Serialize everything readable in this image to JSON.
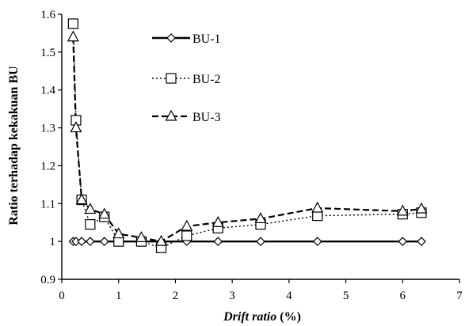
{
  "chart_data": {
    "type": "line",
    "title": "",
    "xlabel_italic": "Drift ratio",
    "xlabel_suffix": " (%)",
    "ylabel": "Ratio terhadap kekakuan BU",
    "xlim": [
      0,
      7
    ],
    "ylim": [
      0.9,
      1.6
    ],
    "x_ticks": [
      0,
      1,
      2,
      3,
      4,
      5,
      6,
      7
    ],
    "y_ticks": [
      0.9,
      1.0,
      1.1,
      1.2,
      1.3,
      1.4,
      1.5,
      1.6
    ],
    "x_tick_labels": [
      "0",
      "1",
      "2",
      "3",
      "4",
      "5",
      "6",
      "7"
    ],
    "y_tick_labels": [
      "0.9",
      "1",
      "1.1",
      "1.2",
      "1.3",
      "1.4",
      "1.5",
      "1.6"
    ],
    "grid": false,
    "legend_position": "top-center",
    "series": [
      {
        "name": "BU-1",
        "marker": "diamond",
        "line_style": "solid",
        "color": "#000000",
        "x": [
          0.2,
          0.25,
          0.35,
          0.5,
          0.75,
          1.0,
          1.4,
          1.75,
          2.2,
          2.75,
          3.5,
          4.5,
          6.0,
          6.33
        ],
        "y": [
          1.0,
          1.0,
          1.0,
          1.0,
          1.0,
          1.0,
          1.0,
          1.0,
          1.0,
          1.0,
          1.0,
          1.0,
          1.0,
          1.0
        ]
      },
      {
        "name": "BU-2",
        "marker": "square",
        "line_style": "dotted",
        "color": "#000000",
        "x": [
          0.2,
          0.25,
          0.35,
          0.5,
          0.75,
          1.0,
          1.4,
          1.75,
          2.2,
          2.75,
          3.5,
          4.5,
          6.0,
          6.33
        ],
        "y": [
          1.575,
          1.32,
          1.11,
          1.045,
          1.065,
          1.0,
          1.0,
          0.983,
          1.015,
          1.035,
          1.045,
          1.068,
          1.072,
          1.076
        ]
      },
      {
        "name": "BU-3",
        "marker": "triangle",
        "line_style": "dashed",
        "color": "#000000",
        "x": [
          0.2,
          0.25,
          0.35,
          0.5,
          0.75,
          1.0,
          1.4,
          1.75,
          2.2,
          2.75,
          3.5,
          4.5,
          6.0,
          6.33
        ],
        "y": [
          1.54,
          1.3,
          1.11,
          1.085,
          1.072,
          1.02,
          1.01,
          1.0,
          1.04,
          1.05,
          1.06,
          1.088,
          1.08,
          1.086
        ]
      }
    ]
  }
}
